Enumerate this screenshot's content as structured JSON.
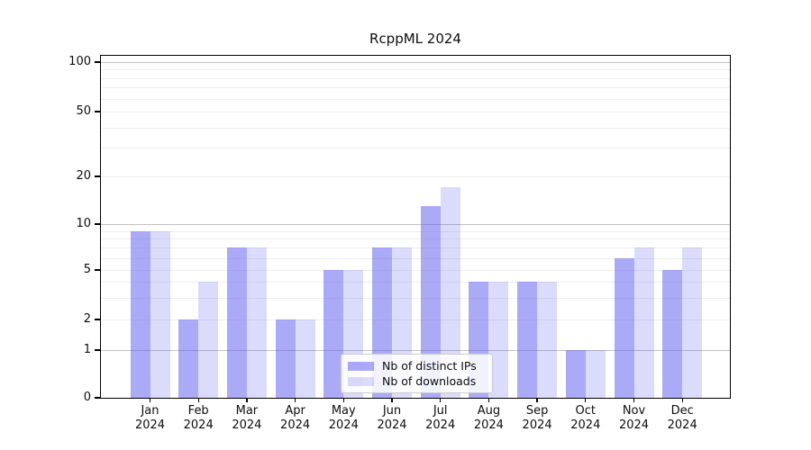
{
  "figure": {
    "title": "RcppML 2024"
  },
  "chart_data": {
    "type": "bar",
    "title": "RcppML 2024",
    "categories": [
      "Jan",
      "Feb",
      "Mar",
      "Apr",
      "May",
      "Jun",
      "Jul",
      "Aug",
      "Sep",
      "Oct",
      "Nov",
      "Dec"
    ],
    "x_year_line": "2024",
    "series": [
      {
        "name": "Nb of distinct IPs",
        "color": "rgba(86,86,240,0.50)",
        "values": [
          9,
          2,
          7,
          2,
          5,
          7,
          13,
          4,
          4,
          1,
          6,
          5
        ]
      },
      {
        "name": "Nb of downloads",
        "color": "rgba(86,86,240,0.21)",
        "values": [
          9,
          4,
          7,
          2,
          5,
          7,
          17,
          4,
          4,
          1,
          7,
          7
        ]
      }
    ],
    "xlabel": "",
    "ylabel": "",
    "y_ticks": [
      100,
      50,
      20,
      10,
      5,
      2,
      1,
      0
    ],
    "ylim": [
      0,
      110
    ],
    "y_scale": "log-like (linear below 1)",
    "grid": "horizontal major + log minor",
    "legend_position": "lower center",
    "colors": {
      "grid_major": "#c3c3c3",
      "grid_minor": "#ededed",
      "spine": "#000000",
      "text": "#0d0d0d",
      "legend_border": "#cccccc"
    }
  }
}
